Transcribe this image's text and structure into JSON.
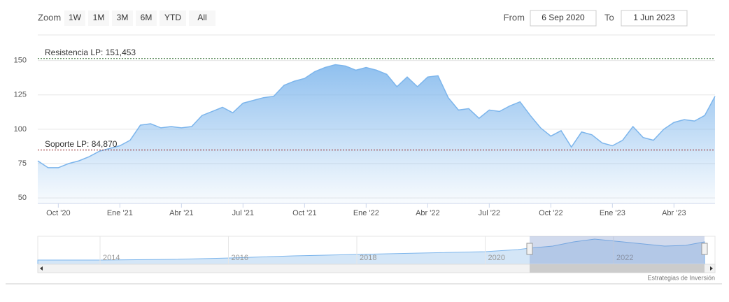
{
  "toolbar": {
    "zoom_label": "Zoom",
    "buttons": [
      "1W",
      "1M",
      "3M",
      "6M",
      "YTD",
      "All"
    ],
    "from_label": "From",
    "from": "6 Sep 2020",
    "to_label": "To",
    "to": "1 Jun 2023"
  },
  "chart_data": {
    "type": "area",
    "categories": [
      null,
      null,
      "Oct '20",
      null,
      null,
      null,
      null,
      null,
      "Ene '21",
      null,
      null,
      null,
      null,
      null,
      "Abr '21",
      null,
      null,
      null,
      null,
      null,
      "Jul '21",
      null,
      null,
      null,
      null,
      null,
      "Oct '21",
      null,
      null,
      null,
      null,
      null,
      "Ene '22",
      null,
      null,
      null,
      null,
      null,
      "Abr '22",
      null,
      null,
      null,
      null,
      null,
      "Jul '22",
      null,
      null,
      null,
      null,
      null,
      "Oct '22",
      null,
      null,
      null,
      null,
      null,
      "Ene '23",
      null,
      null,
      null,
      null,
      null,
      "Abr '23",
      null,
      null,
      null,
      null
    ],
    "series": [
      {
        "color": "#7cb5ec",
        "values": [
          77,
          72,
          72,
          75,
          77,
          80,
          84,
          86,
          88,
          92,
          103,
          104,
          101,
          102,
          101,
          102,
          110,
          113,
          116,
          112,
          119,
          121,
          123,
          124,
          132,
          135,
          137,
          142,
          145,
          147,
          146,
          143,
          145,
          143,
          140,
          131,
          138,
          131,
          138,
          139,
          123,
          114,
          115,
          108,
          114,
          113,
          117,
          120,
          110,
          101,
          95,
          99,
          87,
          98,
          96,
          90,
          88,
          92,
          102,
          94,
          92,
          100,
          105,
          107,
          106,
          110,
          124
        ]
      }
    ],
    "ylim": [
      46,
      160
    ],
    "yticks": [
      50,
      75,
      100,
      125,
      150
    ],
    "grid": true,
    "plot_lines": [
      {
        "label": "Resistencia LP: 151,453",
        "value": 151.453,
        "color": "#2e6b2e"
      },
      {
        "label": "Soporte LP: 84,870",
        "value": 84.87,
        "color": "#8b1a1a"
      }
    ]
  },
  "navigator": {
    "labels": [
      "2014",
      "2016",
      "2018",
      "2020",
      "2022"
    ]
  },
  "credits": "Estrategias de Inversión"
}
